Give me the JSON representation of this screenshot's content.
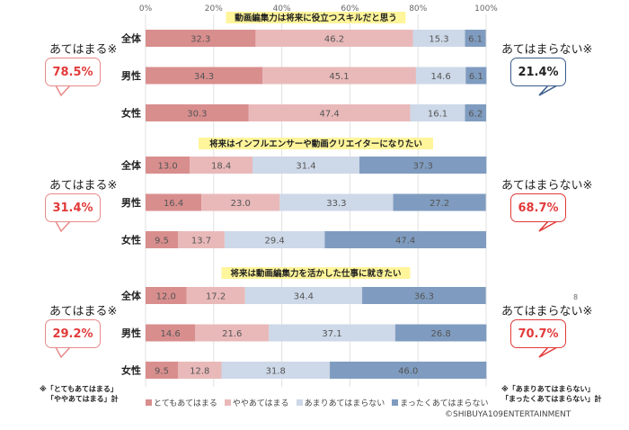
{
  "chart_data": [
    {
      "type": "bar",
      "orientation": "horizontal",
      "stacked": true,
      "title": "動画編集力は将来に役立つスキルだと思う",
      "categories": [
        "全体",
        "男性",
        "女性"
      ],
      "series": [
        {
          "name": "とてもあてはまる",
          "values": [
            32.3,
            34.3,
            30.3
          ]
        },
        {
          "name": "ややあてはまる",
          "values": [
            46.2,
            45.1,
            47.4
          ]
        },
        {
          "name": "あまりあてはまらない",
          "values": [
            15.3,
            14.6,
            16.1
          ]
        },
        {
          "name": "まったくあてはまらない",
          "values": [
            6.1,
            6.1,
            6.2
          ]
        }
      ],
      "xlim": [
        0,
        100
      ],
      "xticks": [
        "0%",
        "20%",
        "40%",
        "60%",
        "80%",
        "100%"
      ],
      "grid": true,
      "left_callout": {
        "label": "あてはまる※",
        "value": "78.5%"
      },
      "right_callout": {
        "label": "あてはまらない※",
        "value": "21.4%"
      }
    },
    {
      "type": "bar",
      "orientation": "horizontal",
      "stacked": true,
      "title": "将来はインフルエンサーや動画クリエイターになりたい",
      "categories": [
        "全体",
        "男性",
        "女性"
      ],
      "series": [
        {
          "name": "とてもあてはまる",
          "values": [
            13.0,
            16.4,
            9.5
          ]
        },
        {
          "name": "ややあてはまる",
          "values": [
            18.4,
            23.0,
            13.7
          ]
        },
        {
          "name": "あまりあてはまらない",
          "values": [
            31.4,
            33.3,
            29.4
          ]
        },
        {
          "name": "まったくあてはまらない",
          "values": [
            37.3,
            27.2,
            47.4
          ]
        }
      ],
      "xlim": [
        0,
        100
      ],
      "grid": true,
      "left_callout": {
        "label": "あてはまる※",
        "value": "31.4%"
      },
      "right_callout": {
        "label": "あてはまらない※",
        "value": "68.7%"
      }
    },
    {
      "type": "bar",
      "orientation": "horizontal",
      "stacked": true,
      "title": "将来は動画編集力を活かした仕事に就きたい",
      "categories": [
        "全体",
        "男性",
        "女性"
      ],
      "series": [
        {
          "name": "とてもあてはまる",
          "values": [
            12.0,
            14.6,
            9.5
          ]
        },
        {
          "name": "ややあてはまる",
          "values": [
            17.2,
            21.6,
            12.8
          ]
        },
        {
          "name": "あまりあてはまらない",
          "values": [
            34.4,
            37.1,
            31.8
          ]
        },
        {
          "name": "まったくあてはまらない",
          "values": [
            36.3,
            26.8,
            46.0
          ]
        }
      ],
      "xlim": [
        0,
        100
      ],
      "grid": true,
      "left_callout": {
        "label": "あてはまる※",
        "value": "29.2%"
      },
      "right_callout": {
        "label": "あてはまらない※",
        "value": "70.7%"
      }
    }
  ],
  "colors": [
    "#d98e8e",
    "#e9b9b9",
    "#cdd8e8",
    "#7f9cc0"
  ],
  "highlight_color": "#e23a3a",
  "legend": [
    "とてもあてはまる",
    "ややあてはまる",
    "あまりあてはまらない",
    "まったくあてはまらない"
  ],
  "notes": {
    "left": [
      "※「とてもあてはまる」",
      "「ややあてはまる」計"
    ],
    "right": [
      "※「あまりあてはまらない」",
      "「まったくあてはまらない」計"
    ]
  },
  "stray_mark": "8",
  "copyright": "©SHIBUYA109ENTERTAINMENT"
}
